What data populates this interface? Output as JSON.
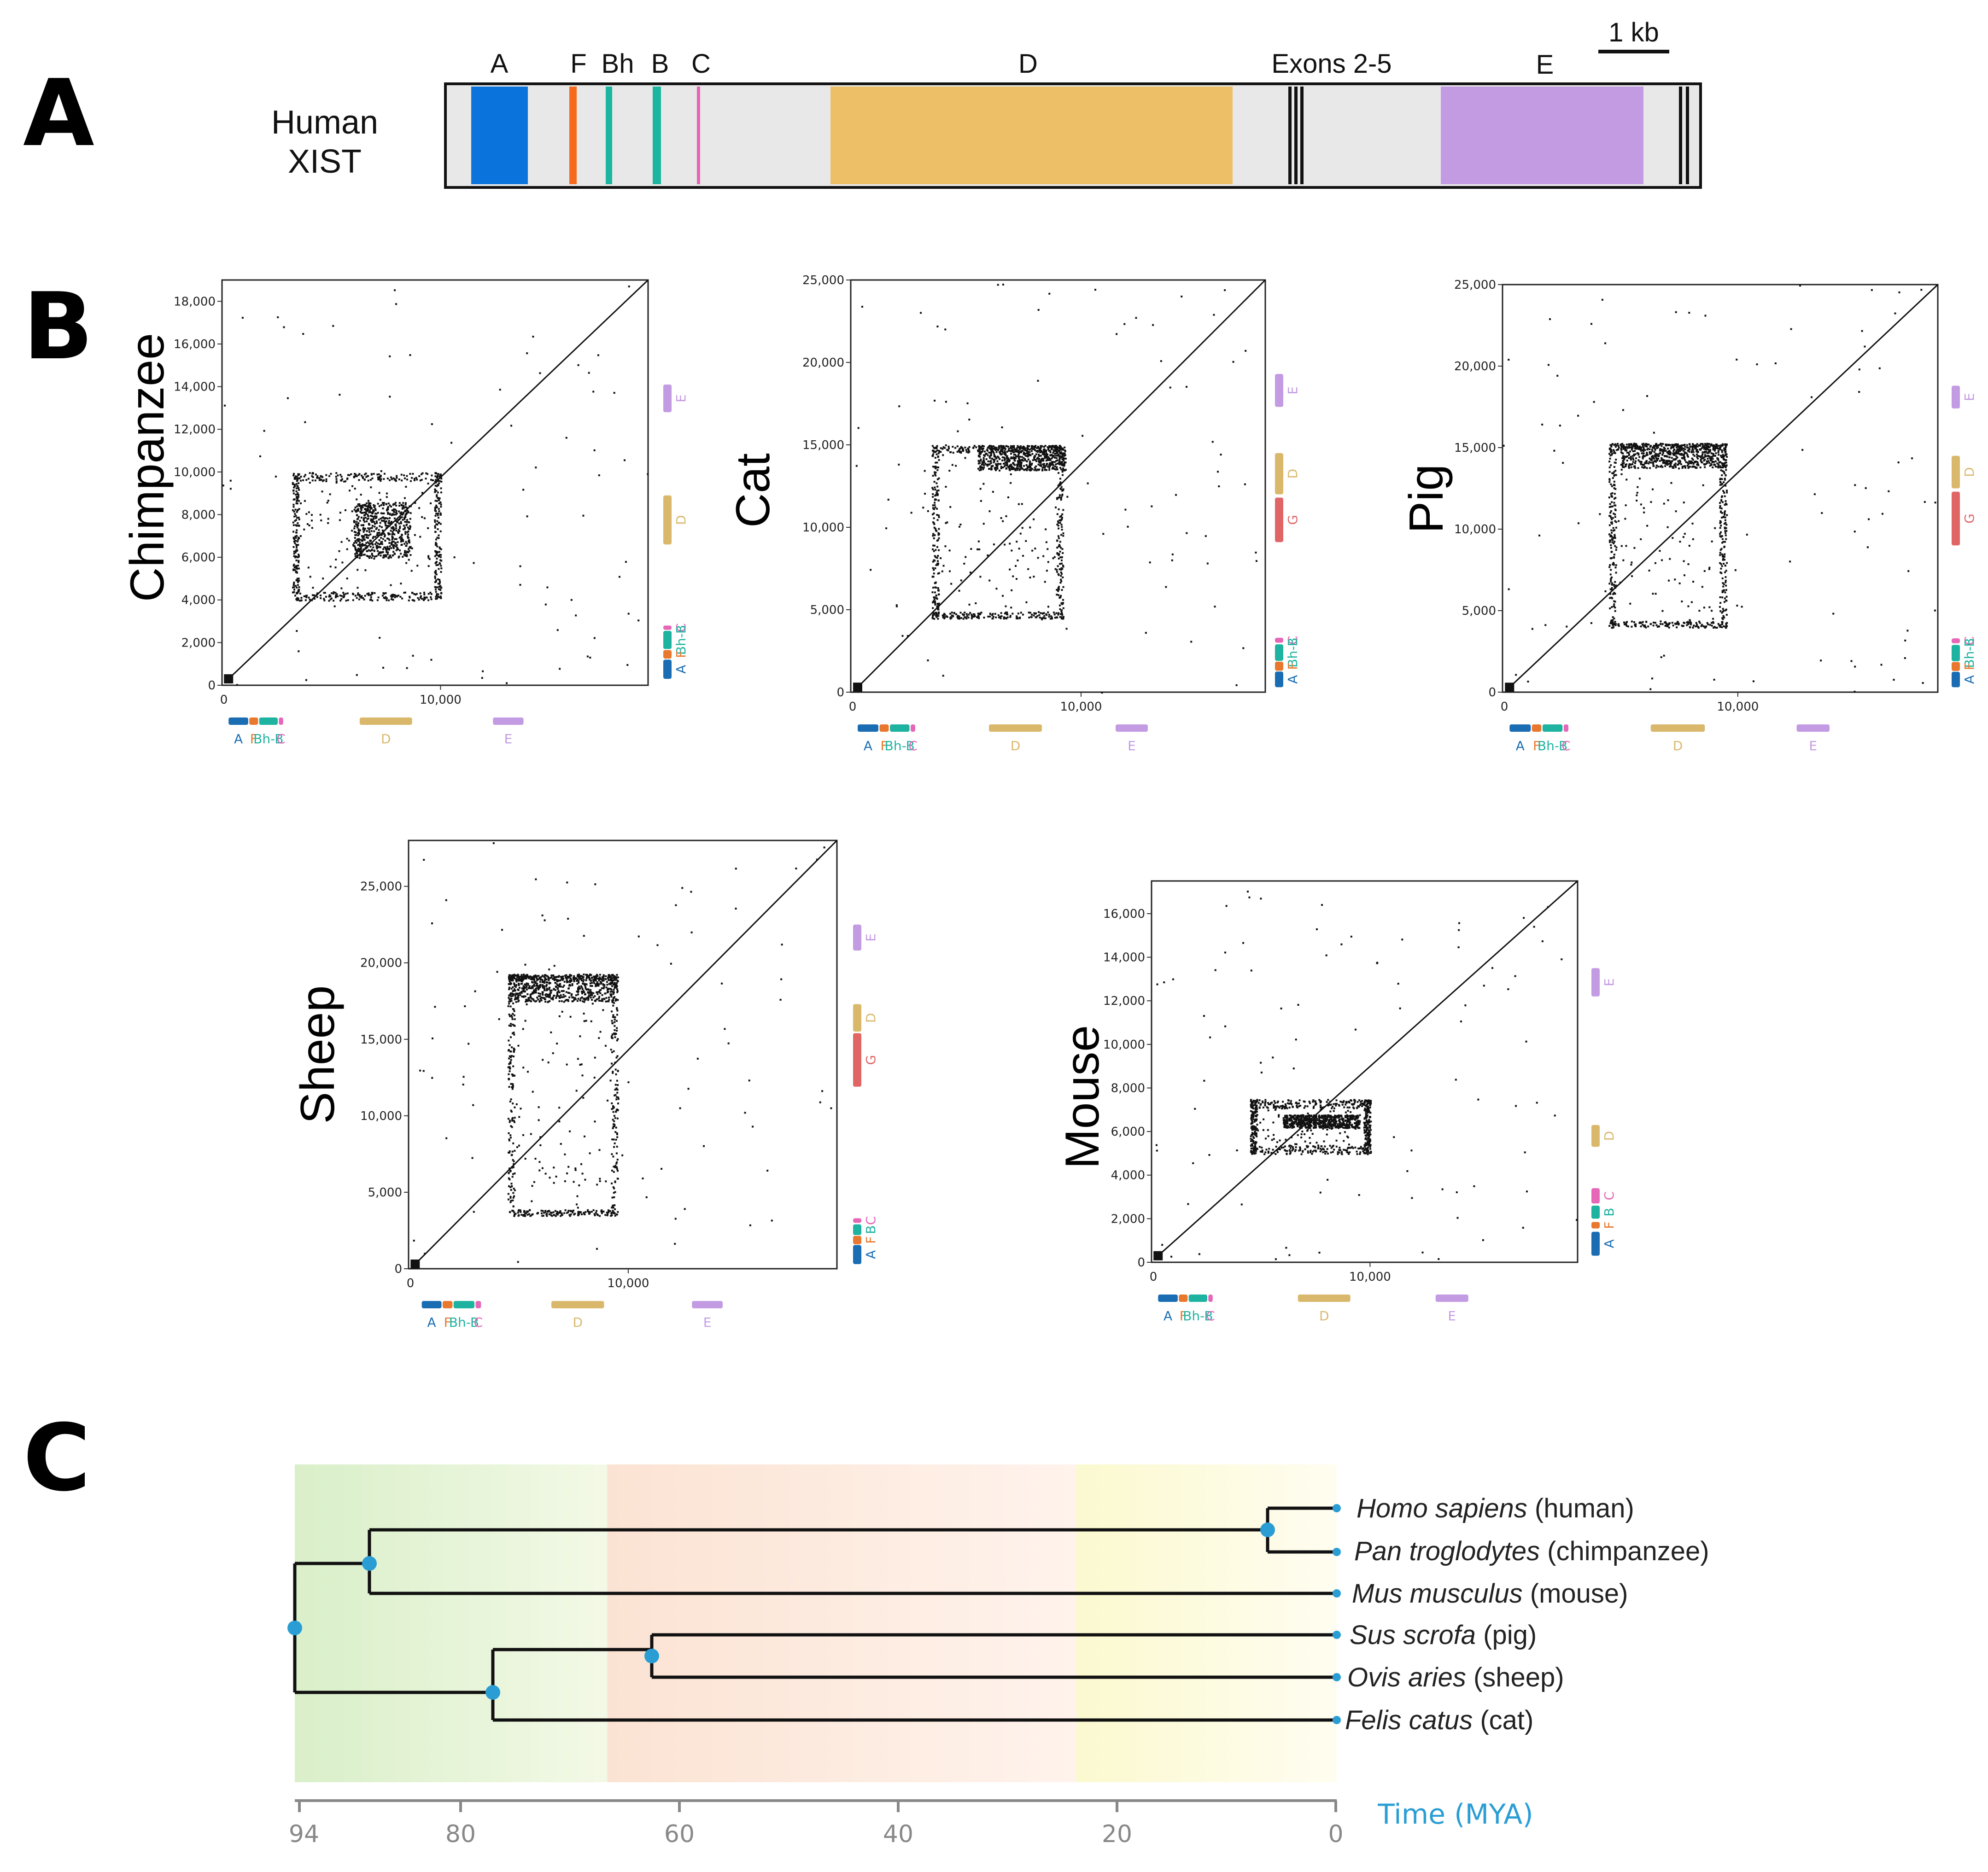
{
  "figure": {
    "panels": {
      "a": "A",
      "b": "B",
      "c": "C"
    }
  },
  "panel_a": {
    "species_line1": "Human",
    "species_line2": "XIST",
    "scale_label": "1 kb",
    "segments": [
      {
        "label": "A",
        "color": "#0a74dc"
      },
      {
        "label": "F",
        "color": "#f56a1c"
      },
      {
        "label": "Bh",
        "color": "#1cb59f"
      },
      {
        "label": "B",
        "color": "#1cb59f"
      },
      {
        "label": "C",
        "color": "#e664b4"
      },
      {
        "label": "D",
        "color": "#edbf66"
      },
      {
        "label": "Exons 2-5",
        "color": "#111111"
      },
      {
        "label": "E",
        "color": "#c39be3"
      }
    ]
  },
  "colors": {
    "A": "#1a6db3",
    "F": "#e8782e",
    "B": "#1eb3a0",
    "C": "#e667b8",
    "D": "#d9b86c",
    "E": "#c39be3",
    "G": "#e06666",
    "track": "#e8e8e8",
    "tree_node": "#2a9ed4"
  },
  "panel_b": {
    "plots": [
      {
        "species": "Chimpanzee",
        "y_ticks": [
          "0",
          "2,000",
          "4,000",
          "6,000",
          "8,000",
          "10,000",
          "12,000",
          "14,000",
          "16,000",
          "18,000"
        ],
        "y_max": 19000,
        "x_max": 19500,
        "x_tick": "10,000",
        "y_bars": [
          {
            "label": "E",
            "from": 14100,
            "to": 12800
          },
          {
            "label": "D",
            "from": 8900,
            "to": 6600
          },
          {
            "label": "C",
            "from": 2800,
            "to": 2600
          },
          {
            "label": "Bh-B",
            "from": 2550,
            "to": 1700
          },
          {
            "label": "F",
            "from": 1650,
            "to": 1250
          },
          {
            "label": "A",
            "from": 1200,
            "to": 300
          }
        ],
        "x_bars": [
          {
            "label": "A",
            "from": 300,
            "to": 1200
          },
          {
            "label": "F",
            "from": 1250,
            "to": 1650
          },
          {
            "label": "Bh-B",
            "from": 1700,
            "to": 2550
          },
          {
            "label": "C",
            "from": 2600,
            "to": 2800
          },
          {
            "label": "D",
            "from": 6300,
            "to": 8700
          },
          {
            "label": "E",
            "from": 12400,
            "to": 13800
          }
        ],
        "dense_block": {
          "x": [
            6000,
            8600
          ],
          "y": [
            6000,
            8600
          ]
        },
        "box": {
          "x": [
            3200,
            10000
          ],
          "y": [
            4000,
            10000
          ]
        }
      },
      {
        "species": "Cat",
        "y_ticks": [
          "0",
          "5,000",
          "10,000",
          "15,000",
          "20,000",
          "25,000"
        ],
        "y_max": 25000,
        "x_max": 18000,
        "x_tick": "10,000",
        "y_bars": [
          {
            "label": "E",
            "from": 19300,
            "to": 17300
          },
          {
            "label": "D",
            "from": 14500,
            "to": 12000
          },
          {
            "label": "G",
            "from": 11800,
            "to": 9100
          },
          {
            "label": "C",
            "from": 3300,
            "to": 3000
          },
          {
            "label": "Bh-B",
            "from": 2900,
            "to": 1900
          },
          {
            "label": "F",
            "from": 1850,
            "to": 1300
          },
          {
            "label": "A",
            "from": 1250,
            "to": 300
          }
        ],
        "x_bars": [
          {
            "label": "A",
            "from": 300,
            "to": 1200
          },
          {
            "label": "F",
            "from": 1250,
            "to": 1650
          },
          {
            "label": "Bh-B",
            "from": 1700,
            "to": 2550
          },
          {
            "label": "C",
            "from": 2600,
            "to": 2800
          },
          {
            "label": "D",
            "from": 6000,
            "to": 8300
          },
          {
            "label": "E",
            "from": 11500,
            "to": 12900
          }
        ],
        "dense_block": {
          "x": [
            5500,
            9300
          ],
          "y": [
            13500,
            15000
          ]
        },
        "box": {
          "x": [
            3500,
            9200
          ],
          "y": [
            4500,
            15000
          ]
        }
      },
      {
        "species": "Pig",
        "y_ticks": [
          "0",
          "5,000",
          "10,000",
          "15,000",
          "20,000",
          "25,000"
        ],
        "y_max": 25000,
        "x_max": 18500,
        "x_tick": "10,000",
        "y_bars": [
          {
            "label": "E",
            "from": 18800,
            "to": 17400
          },
          {
            "label": "D",
            "from": 14500,
            "to": 12500
          },
          {
            "label": "G",
            "from": 12300,
            "to": 9000
          },
          {
            "label": "C",
            "from": 3300,
            "to": 3000
          },
          {
            "label": "Bh-B",
            "from": 2900,
            "to": 1900
          },
          {
            "label": "F",
            "from": 1850,
            "to": 1300
          },
          {
            "label": "A",
            "from": 1250,
            "to": 300
          }
        ],
        "x_bars": [
          {
            "label": "A",
            "from": 300,
            "to": 1200
          },
          {
            "label": "F",
            "from": 1250,
            "to": 1650
          },
          {
            "label": "Bh-B",
            "from": 1700,
            "to": 2550
          },
          {
            "label": "C",
            "from": 2600,
            "to": 2800
          },
          {
            "label": "D",
            "from": 6300,
            "to": 8600
          },
          {
            "label": "E",
            "from": 12500,
            "to": 13900
          }
        ],
        "dense_block": {
          "x": [
            5000,
            9500
          ],
          "y": [
            13800,
            15300
          ]
        },
        "box": {
          "x": [
            4500,
            9500
          ],
          "y": [
            4000,
            15300
          ]
        }
      },
      {
        "species": "Sheep",
        "y_ticks": [
          "0",
          "5,000",
          "10,000",
          "15,000",
          "20,000",
          "25,000"
        ],
        "y_max": 28000,
        "x_max": 19500,
        "x_tick": "10,000",
        "y_bars": [
          {
            "label": "E",
            "from": 22500,
            "to": 20800
          },
          {
            "label": "D",
            "from": 17300,
            "to": 15500
          },
          {
            "label": "G",
            "from": 15400,
            "to": 11900
          },
          {
            "label": "C",
            "from": 3300,
            "to": 3000
          },
          {
            "label": "B",
            "from": 2900,
            "to": 2200
          },
          {
            "label": "F",
            "from": 2150,
            "to": 1600
          },
          {
            "label": "A",
            "from": 1550,
            "to": 300
          }
        ],
        "x_bars": [
          {
            "label": "A",
            "from": 600,
            "to": 1500
          },
          {
            "label": "F",
            "from": 1550,
            "to": 2000
          },
          {
            "label": "Bh-B",
            "from": 2050,
            "to": 3000
          },
          {
            "label": "C",
            "from": 3050,
            "to": 3300
          },
          {
            "label": "D",
            "from": 6500,
            "to": 8900
          },
          {
            "label": "E",
            "from": 12900,
            "to": 14300
          }
        ],
        "dense_block": {
          "x": [
            4500,
            9500
          ],
          "y": [
            17500,
            19300
          ]
        },
        "box": {
          "x": [
            4500,
            9500
          ],
          "y": [
            3500,
            19300
          ]
        }
      },
      {
        "species": "Mouse",
        "y_ticks": [
          "0",
          "2,000",
          "4,000",
          "6,000",
          "8,000",
          "10,000",
          "12,000",
          "14,000",
          "16,000"
        ],
        "y_max": 17500,
        "x_max": 19500,
        "x_tick": "10,000",
        "y_bars": [
          {
            "label": "E",
            "from": 13500,
            "to": 12200
          },
          {
            "label": "D",
            "from": 6300,
            "to": 5300
          },
          {
            "label": "C",
            "from": 3400,
            "to": 2700
          },
          {
            "label": "B",
            "from": 2600,
            "to": 2000
          },
          {
            "label": "F",
            "from": 1850,
            "to": 1550
          },
          {
            "label": "A",
            "from": 1400,
            "to": 300
          }
        ],
        "x_bars": [
          {
            "label": "A",
            "from": 300,
            "to": 1200
          },
          {
            "label": "F",
            "from": 1250,
            "to": 1650
          },
          {
            "label": "Bh-B",
            "from": 1700,
            "to": 2550
          },
          {
            "label": "C",
            "from": 2600,
            "to": 2800
          },
          {
            "label": "D",
            "from": 6700,
            "to": 9100
          },
          {
            "label": "E",
            "from": 13000,
            "to": 14500
          }
        ],
        "dense_block": {
          "x": [
            6000,
            9500
          ],
          "y": [
            6200,
            6800
          ]
        },
        "box": {
          "x": [
            4500,
            10000
          ],
          "y": [
            5000,
            7500
          ]
        }
      }
    ]
  },
  "panel_c": {
    "taxa": [
      {
        "italic": "Homo sapiens",
        "common": "(human)"
      },
      {
        "italic": "Pan troglodytes",
        "common": "(chimpanzee)"
      },
      {
        "italic": "Mus musculus",
        "common": "(mouse)"
      },
      {
        "italic": "Sus scrofa",
        "common": "(pig)"
      },
      {
        "italic": "Ovis aries",
        "common": "(sheep)"
      },
      {
        "italic": "Felis catus",
        "common": "(cat)"
      }
    ],
    "nodes_mya": {
      "root": 94,
      "primates_rodents": 90,
      "human_chimp": 6.4,
      "laurasiatheria": 77,
      "pig_sheep": 62
    },
    "time_ticks": [
      "94",
      "80",
      "60",
      "40",
      "20",
      "0"
    ],
    "time_label": "Time (MYA)"
  }
}
